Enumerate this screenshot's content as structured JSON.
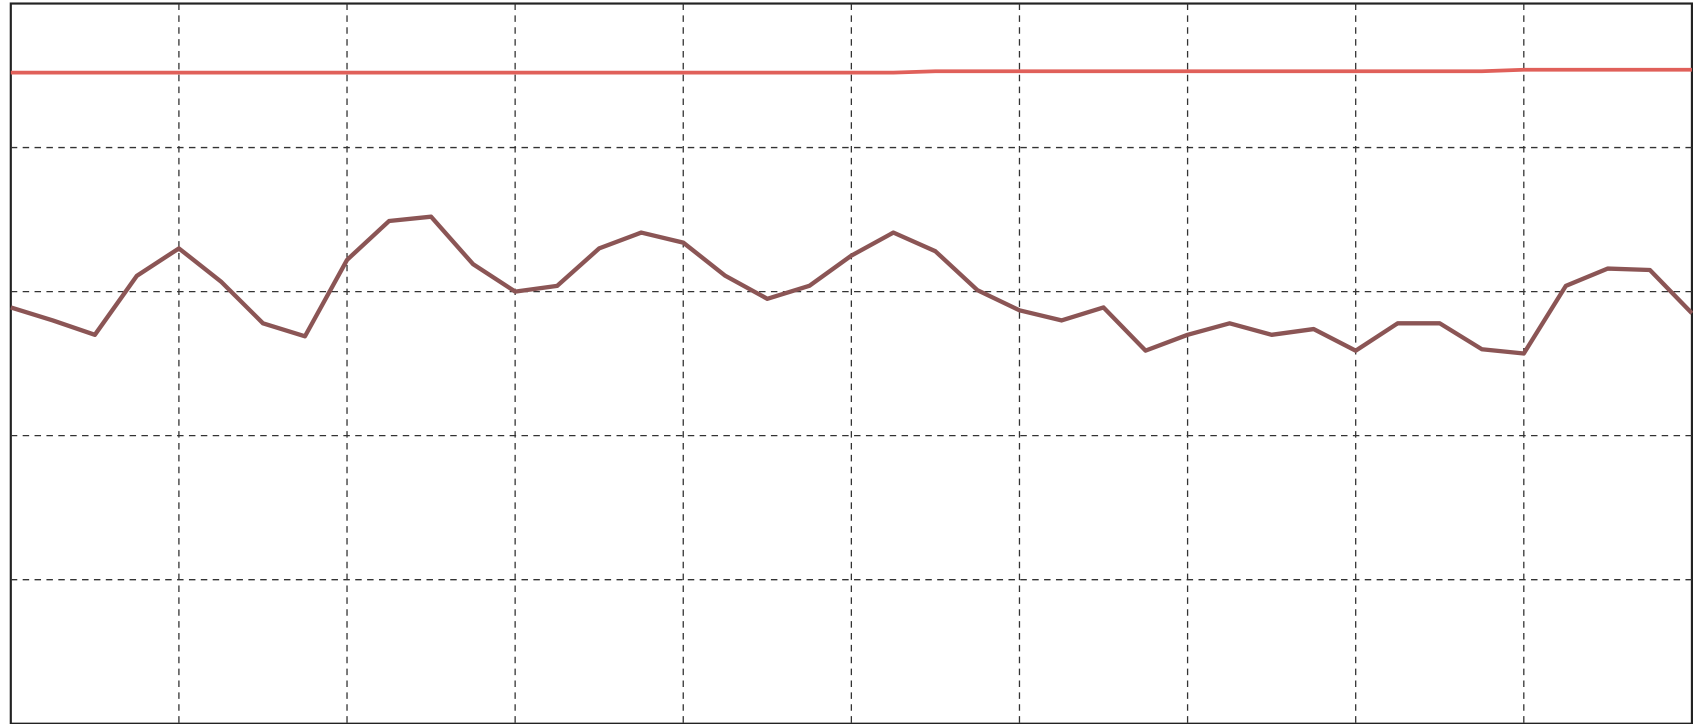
{
  "chart_data": {
    "type": "line",
    "x": [
      0,
      0.25,
      0.5,
      0.75,
      1,
      1.25,
      1.5,
      1.75,
      2,
      2.25,
      2.5,
      2.75,
      3,
      3.25,
      3.5,
      3.75,
      4,
      4.25,
      4.5,
      4.75,
      5,
      5.25,
      5.5,
      5.75,
      6,
      6.25,
      6.5,
      6.75,
      7,
      7.25,
      7.5,
      7.75,
      8,
      8.25,
      8.5,
      8.75,
      9,
      9.25,
      9.5,
      9.75,
      10
    ],
    "series": [
      {
        "color": "#e0605a",
        "values": [
          4.52,
          4.52,
          4.52,
          4.52,
          4.52,
          4.52,
          4.52,
          4.52,
          4.52,
          4.52,
          4.52,
          4.52,
          4.52,
          4.52,
          4.52,
          4.52,
          4.52,
          4.52,
          4.52,
          4.52,
          4.52,
          4.52,
          4.53,
          4.53,
          4.53,
          4.53,
          4.53,
          4.53,
          4.53,
          4.53,
          4.53,
          4.53,
          4.53,
          4.53,
          4.53,
          4.53,
          4.54,
          4.54,
          4.54,
          4.54,
          4.54
        ]
      },
      {
        "color": "#8b5555",
        "values": [
          2.89,
          2.8,
          2.7,
          3.11,
          3.3,
          3.07,
          2.78,
          2.69,
          3.22,
          3.49,
          3.52,
          3.19,
          3.0,
          3.04,
          3.3,
          3.41,
          3.34,
          3.11,
          2.95,
          3.04,
          3.25,
          3.41,
          3.28,
          3.01,
          2.87,
          2.8,
          2.89,
          2.59,
          2.7,
          2.78,
          2.7,
          2.74,
          2.59,
          2.78,
          2.78,
          2.6,
          2.57,
          3.04,
          3.16,
          3.15,
          2.85
        ]
      }
    ],
    "xlim": [
      0,
      10
    ],
    "ylim": [
      0,
      5
    ],
    "xticks": [
      1,
      2,
      3,
      4,
      5,
      6,
      7,
      8,
      9
    ],
    "yticks": [
      1,
      2,
      3,
      4
    ],
    "grid": true
  }
}
